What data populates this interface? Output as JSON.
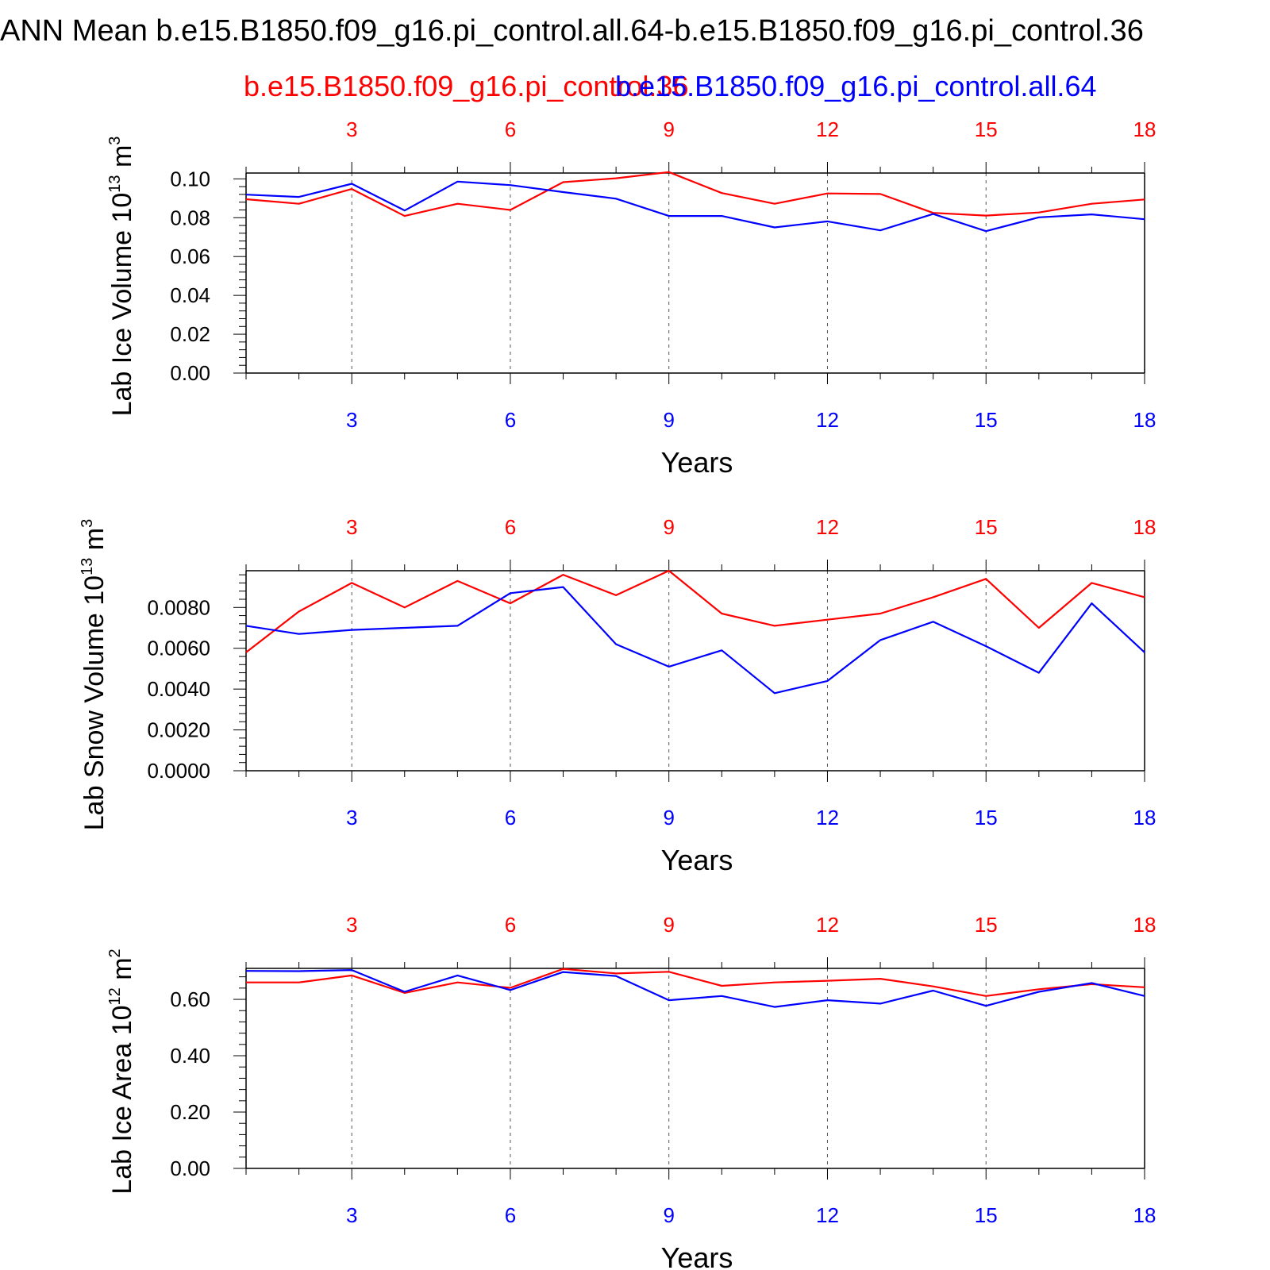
{
  "title": "ANN Mean b.e15.B1850.f09_g16.pi_control.all.64-b.e15.B1850.f09_g16.pi_control.36",
  "legend": {
    "red": "b.e15.B1850.f09_g16.pi_control.36",
    "blue": "b.e15.B1850.f09_g16.pi_control.all.64"
  },
  "colors": {
    "red": "#ff0000",
    "blue": "#0000ff"
  },
  "chart_data": [
    {
      "type": "line",
      "ylabel": "Lab Ice Volume 10",
      "yunit_exp": "13",
      "yunit": "m",
      "yunit_power": "3",
      "xlabel": "Years",
      "xlim": [
        1,
        18
      ],
      "ylim": [
        0,
        0.103
      ],
      "yticks": [
        "0.00",
        "0.02",
        "0.04",
        "0.06",
        "0.08",
        "0.10"
      ],
      "ytick_values": [
        0,
        0.02,
        0.04,
        0.06,
        0.08,
        0.1
      ],
      "xticks": [
        3,
        6,
        9,
        12,
        15,
        18
      ],
      "grid": "vertical dashed",
      "x": [
        1,
        2,
        3,
        4,
        5,
        6,
        7,
        8,
        9,
        10,
        11,
        12,
        13,
        14,
        15,
        16,
        17,
        18
      ],
      "series": [
        {
          "name": "b.e15.B1850.f09_g16.pi_control.36",
          "color": "red",
          "values": [
            0.0895,
            0.0872,
            0.0948,
            0.0809,
            0.0872,
            0.084,
            0.0983,
            0.1003,
            0.1035,
            0.0927,
            0.0872,
            0.0925,
            0.0922,
            0.0825,
            0.0811,
            0.0827,
            0.0872,
            0.0894
          ]
        },
        {
          "name": "b.e15.B1850.f09_g16.pi_control.all.64",
          "color": "blue",
          "values": [
            0.0919,
            0.0907,
            0.0975,
            0.0837,
            0.0986,
            0.0968,
            0.0932,
            0.0898,
            0.0809,
            0.0809,
            0.075,
            0.0781,
            0.0735,
            0.0819,
            0.0731,
            0.0802,
            0.0817,
            0.0792
          ]
        }
      ]
    },
    {
      "type": "line",
      "ylabel": "Lab Snow Volume 10",
      "yunit_exp": "13",
      "yunit": "m",
      "yunit_power": "3",
      "xlabel": "Years",
      "xlim": [
        1,
        18
      ],
      "ylim": [
        0,
        0.0098
      ],
      "yticks": [
        "0.0000",
        "0.0020",
        "0.0040",
        "0.0060",
        "0.0080"
      ],
      "ytick_values": [
        0,
        0.002,
        0.004,
        0.006,
        0.008
      ],
      "xticks": [
        3,
        6,
        9,
        12,
        15,
        18
      ],
      "grid": "vertical dashed",
      "x": [
        1,
        2,
        3,
        4,
        5,
        6,
        7,
        8,
        9,
        10,
        11,
        12,
        13,
        14,
        15,
        16,
        17,
        18
      ],
      "series": [
        {
          "name": "b.e15.B1850.f09_g16.pi_control.36",
          "color": "red",
          "values": [
            0.0058,
            0.0078,
            0.0092,
            0.008,
            0.0093,
            0.0082,
            0.0096,
            0.0086,
            0.0098,
            0.0077,
            0.0071,
            0.0074,
            0.0077,
            0.0085,
            0.0094,
            0.007,
            0.0092,
            0.0085
          ]
        },
        {
          "name": "b.e15.B1850.f09_g16.pi_control.all.64",
          "color": "blue",
          "values": [
            0.0071,
            0.0067,
            0.0069,
            0.007,
            0.0071,
            0.0087,
            0.009,
            0.0062,
            0.0051,
            0.0059,
            0.0038,
            0.0044,
            0.0064,
            0.0073,
            0.0061,
            0.0048,
            0.0082,
            0.0058
          ]
        }
      ]
    },
    {
      "type": "line",
      "ylabel": "Lab Ice Area 10",
      "yunit_exp": "12",
      "yunit": "m",
      "yunit_power": "2",
      "xlabel": "Years",
      "xlim": [
        1,
        18
      ],
      "ylim": [
        0,
        0.71
      ],
      "yticks": [
        "0.00",
        "0.20",
        "0.40",
        "0.60"
      ],
      "ytick_values": [
        0,
        0.2,
        0.4,
        0.6
      ],
      "xticks": [
        3,
        6,
        9,
        12,
        15,
        18
      ],
      "grid": "vertical dashed",
      "x": [
        1,
        2,
        3,
        4,
        5,
        6,
        7,
        8,
        9,
        10,
        11,
        12,
        13,
        14,
        15,
        16,
        17,
        18
      ],
      "series": [
        {
          "name": "b.e15.B1850.f09_g16.pi_control.36",
          "color": "red",
          "values": [
            0.66,
            0.66,
            0.685,
            0.623,
            0.66,
            0.641,
            0.708,
            0.692,
            0.698,
            0.648,
            0.66,
            0.666,
            0.673,
            0.646,
            0.612,
            0.636,
            0.654,
            0.643
          ]
        },
        {
          "name": "b.e15.B1850.f09_g16.pi_control.all.64",
          "color": "blue",
          "values": [
            0.701,
            0.7,
            0.704,
            0.627,
            0.685,
            0.633,
            0.697,
            0.683,
            0.597,
            0.612,
            0.573,
            0.597,
            0.585,
            0.631,
            0.577,
            0.627,
            0.658,
            0.612
          ]
        }
      ]
    }
  ]
}
